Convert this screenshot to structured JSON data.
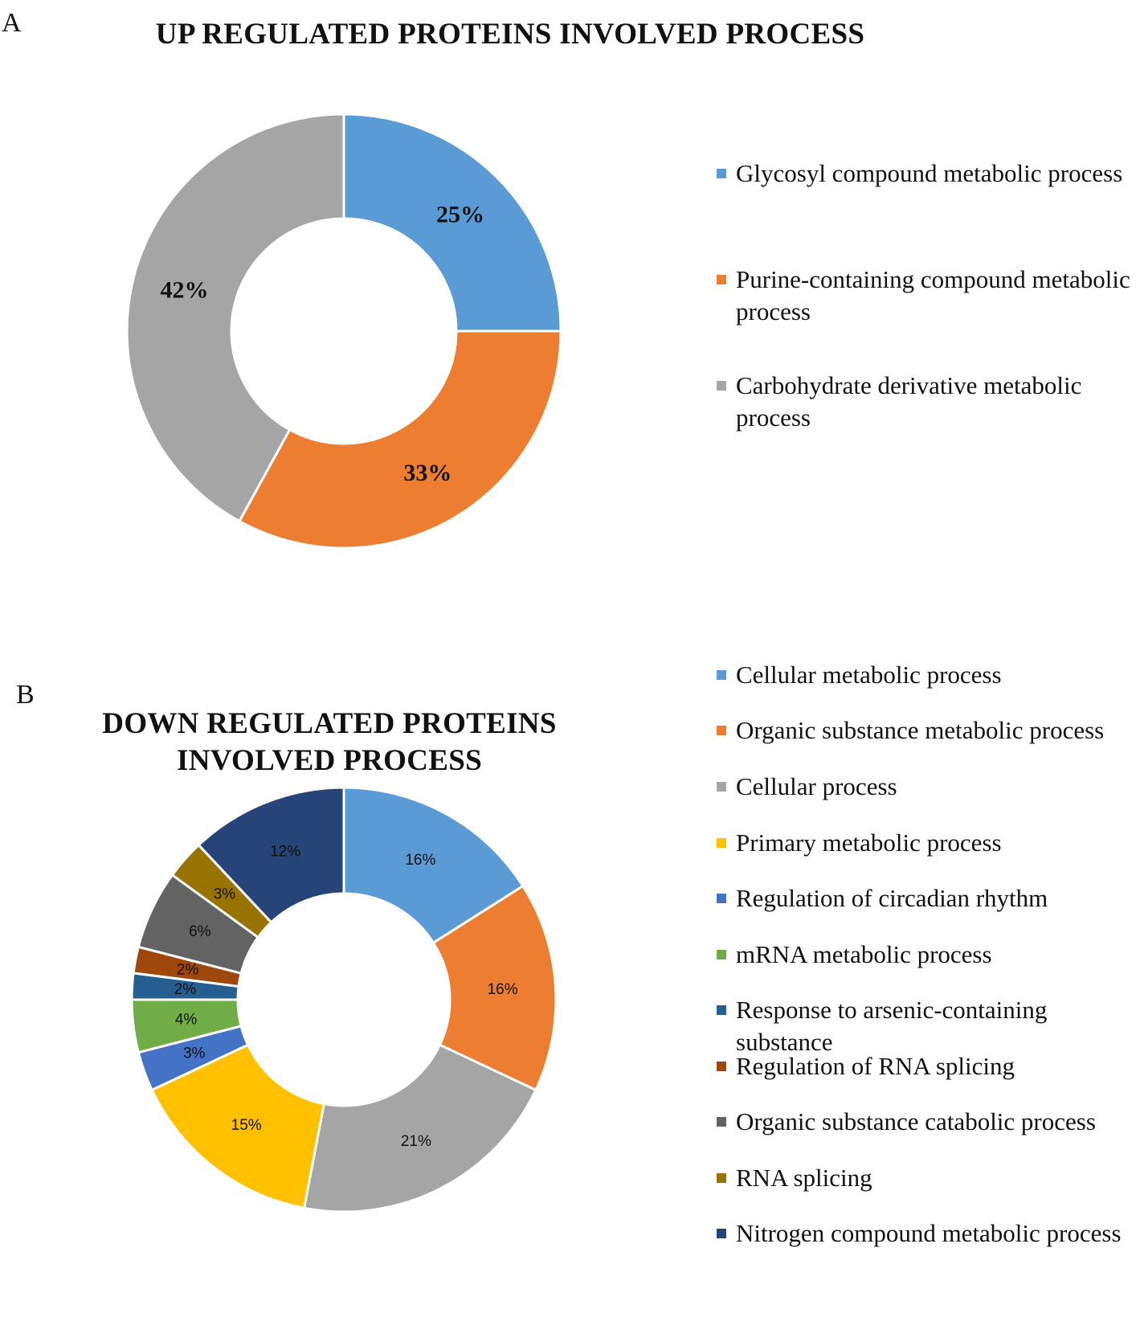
{
  "panel_a": {
    "letter": "A",
    "title": "UP REGULATED PROTEINS INVOLVED PROCESS"
  },
  "panel_b": {
    "letter": "B",
    "title_line1": "DOWN REGULATED PROTEINS",
    "title_line2": "INVOLVED PROCESS"
  },
  "chart_data": [
    {
      "type": "pie",
      "subtype": "donut",
      "title": "UP REGULATED PROTEINS INVOLVED PROCESS",
      "legend_position": "right",
      "label_style": "bold",
      "categories": [
        "Glycosyl compound metabolic process",
        "Purine-containing compound metabolic process",
        "Carbohydrate derivative metabolic process"
      ],
      "values": [
        25,
        33,
        42
      ],
      "labels": [
        "25%",
        "33%",
        "42%"
      ],
      "colors": [
        "#5b9bd5",
        "#ed7d31",
        "#a5a5a5"
      ]
    },
    {
      "type": "pie",
      "subtype": "donut",
      "title": "DOWN REGULATED PROTEINS INVOLVED PROCESS",
      "legend_position": "right",
      "label_style": "normal",
      "categories": [
        "Cellular metabolic process",
        "Organic substance metabolic process",
        "Cellular process",
        "Primary metabolic process",
        "Regulation of circadian rhythm",
        "mRNA metabolic process",
        "Response to arsenic-containing substance",
        "Regulation of RNA splicing",
        "Organic substance catabolic process",
        "RNA splicing",
        "Nitrogen compound metabolic process"
      ],
      "values": [
        16,
        16,
        21,
        15,
        3,
        4,
        2,
        2,
        6,
        3,
        12
      ],
      "labels": [
        "16%",
        "16%",
        "21%",
        "15%",
        "3%",
        "4%",
        "2%",
        "2%",
        "6%",
        "3%",
        "12%"
      ],
      "colors": [
        "#5b9bd5",
        "#ed7d31",
        "#a5a5a5",
        "#ffc000",
        "#4472c4",
        "#70ad47",
        "#255e91",
        "#9e480e",
        "#636363",
        "#997300",
        "#264478"
      ]
    }
  ]
}
